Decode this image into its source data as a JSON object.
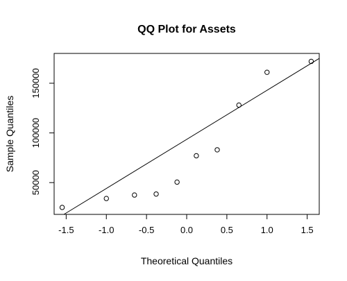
{
  "chart_data": {
    "type": "scatter",
    "title": "QQ Plot for Assets",
    "xlabel": "Theoretical Quantiles",
    "ylabel": "Sample Quantiles",
    "xlim": [
      -1.65,
      1.65
    ],
    "ylim": [
      18000,
      180000
    ],
    "x_ticks": [
      -1.5,
      -1.0,
      -0.5,
      0.0,
      0.5,
      1.0,
      1.5
    ],
    "x_tick_labels": [
      "-1.5",
      "-1.0",
      "-0.5",
      "0.0",
      "0.5",
      "1.0",
      "1.5"
    ],
    "y_ticks": [
      50000,
      100000,
      150000
    ],
    "y_tick_labels": [
      "50000",
      "100000",
      "150000"
    ],
    "grid": false,
    "points": [
      {
        "x": -1.55,
        "y": 25000
      },
      {
        "x": -1.0,
        "y": 34000
      },
      {
        "x": -0.65,
        "y": 37500
      },
      {
        "x": -0.38,
        "y": 38500
      },
      {
        "x": -0.12,
        "y": 50500
      },
      {
        "x": 0.12,
        "y": 77000
      },
      {
        "x": 0.38,
        "y": 83000
      },
      {
        "x": 0.65,
        "y": 128000
      },
      {
        "x": 1.0,
        "y": 161000
      },
      {
        "x": 1.55,
        "y": 172000
      }
    ],
    "reference_line": {
      "x1": -1.65,
      "y1": 12000,
      "x2": 1.65,
      "y2": 175000
    },
    "point_color": "#000000"
  }
}
